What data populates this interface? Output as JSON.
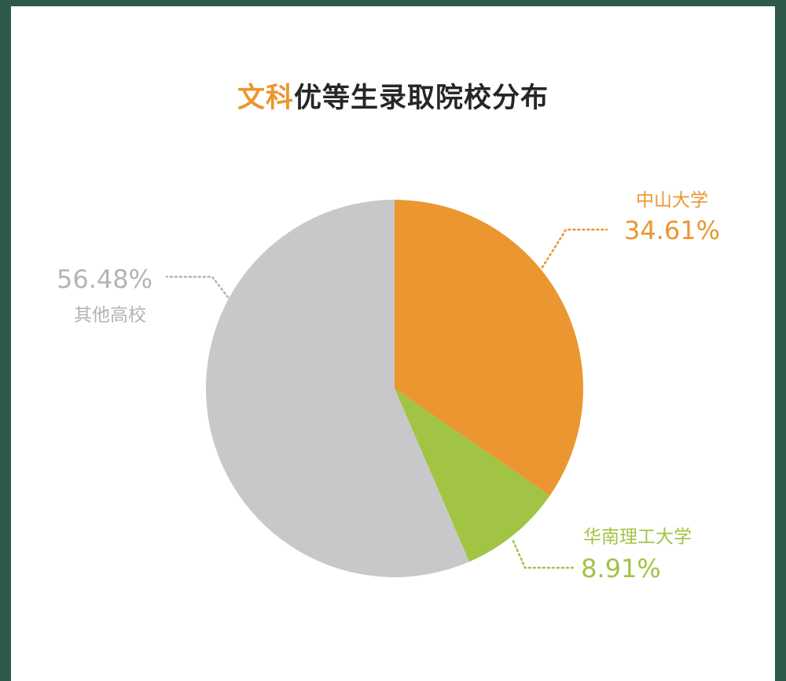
{
  "chart_data": {
    "type": "pie",
    "title_highlight": "文科",
    "title_rest": "优等生录取院校分布",
    "slices": [
      {
        "name": "中山大学",
        "value": 34.61,
        "label": "34.61%",
        "color": "#eb9630"
      },
      {
        "name": "华南理工大学",
        "value": 8.91,
        "label": "8.91%",
        "color": "#a2c444"
      },
      {
        "name": "其他高校",
        "value": 56.48,
        "label": "56.48%",
        "color": "#c8c8cb"
      }
    ]
  },
  "colors": {
    "frame": "#2e5a4a",
    "background": "#ffffff",
    "title_text": "#262626",
    "title_highlight": "#eb9630"
  }
}
